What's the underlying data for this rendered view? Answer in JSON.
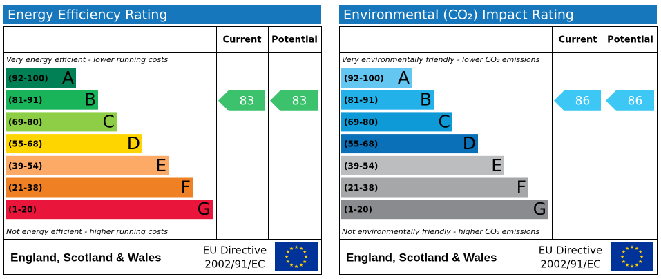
{
  "chart_data": [
    {
      "type": "epc",
      "title": "Energy Efficiency Rating",
      "columns": [
        "Current",
        "Potential"
      ],
      "top_note": "Very energy efficient - lower running costs",
      "bottom_note": "Not energy efficient - higher running costs",
      "bands": [
        {
          "range": "(92-100)",
          "letter": "A",
          "color": "#008054"
        },
        {
          "range": "(81-91)",
          "letter": "B",
          "color": "#19b459"
        },
        {
          "range": "(69-80)",
          "letter": "C",
          "color": "#8dce46"
        },
        {
          "range": "(55-68)",
          "letter": "D",
          "color": "#ffd500"
        },
        {
          "range": "(39-54)",
          "letter": "E",
          "color": "#fcaa65"
        },
        {
          "range": "(21-38)",
          "letter": "F",
          "color": "#ef8023"
        },
        {
          "range": "(1-20)",
          "letter": "G",
          "color": "#e9153b"
        }
      ],
      "current": 83,
      "potential": 83,
      "arrow_color": "#3cc26c",
      "region": "England, Scotland & Wales",
      "directive": [
        "EU Directive",
        "2002/91/EC"
      ]
    },
    {
      "type": "epc",
      "title": "Environmental (CO₂) Impact Rating",
      "columns": [
        "Current",
        "Potential"
      ],
      "top_note": "Very environmentally friendly - lower CO₂ emissions",
      "bottom_note": "Not environmentally friendly - higher CO₂ emissions",
      "bands": [
        {
          "range": "(92-100)",
          "letter": "A",
          "color": "#63c7f1"
        },
        {
          "range": "(81-91)",
          "letter": "B",
          "color": "#22b1e9"
        },
        {
          "range": "(69-80)",
          "letter": "C",
          "color": "#0d9ad7"
        },
        {
          "range": "(55-68)",
          "letter": "D",
          "color": "#0a70b8"
        },
        {
          "range": "(39-54)",
          "letter": "E",
          "color": "#bbbdbf"
        },
        {
          "range": "(21-38)",
          "letter": "F",
          "color": "#a5a7a9"
        },
        {
          "range": "(1-20)",
          "letter": "G",
          "color": "#898b8e"
        }
      ],
      "current": 86,
      "potential": 86,
      "arrow_color": "#3cc7f4",
      "region": "England, Scotland & Wales",
      "directive": [
        "EU Directive",
        "2002/91/EC"
      ]
    }
  ]
}
